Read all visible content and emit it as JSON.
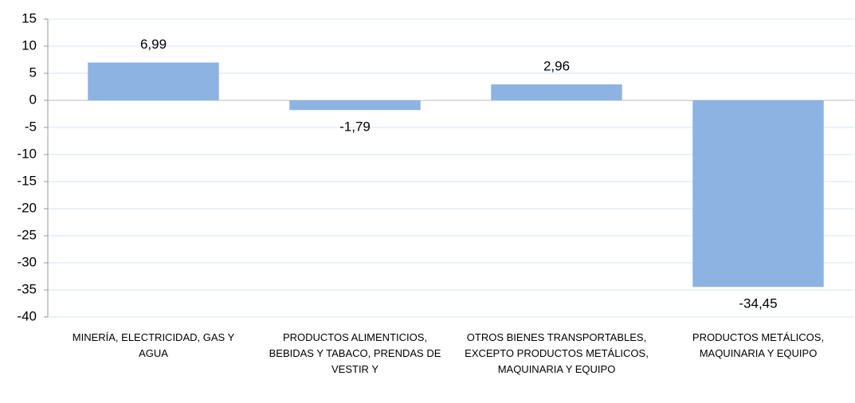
{
  "chart_data": {
    "type": "bar",
    "categories": [
      "MINERÍA, ELECTRICIDAD, GAS Y AGUA",
      "PRODUCTOS ALIMENTICIOS, BEBIDAS Y TABACO, PRENDAS DE VESTIR Y",
      "OTROS BIENES TRANSPORTABLES, EXCEPTO PRODUCTOS METÁLICOS, MAQUINARIA Y EQUIPO",
      "PRODUCTOS METÁLICOS, MAQUINARIA Y EQUIPO"
    ],
    "values": [
      6.99,
      -1.79,
      2.96,
      -34.45
    ],
    "value_labels": [
      "6,99",
      "-1,79",
      "2,96",
      "-34,45"
    ],
    "color": "#8db3e2",
    "ylim": [
      -40,
      15
    ],
    "yticks": [
      -40,
      -35,
      -30,
      -25,
      -20,
      -15,
      -10,
      -5,
      0,
      5,
      10,
      15
    ],
    "grid": true
  }
}
